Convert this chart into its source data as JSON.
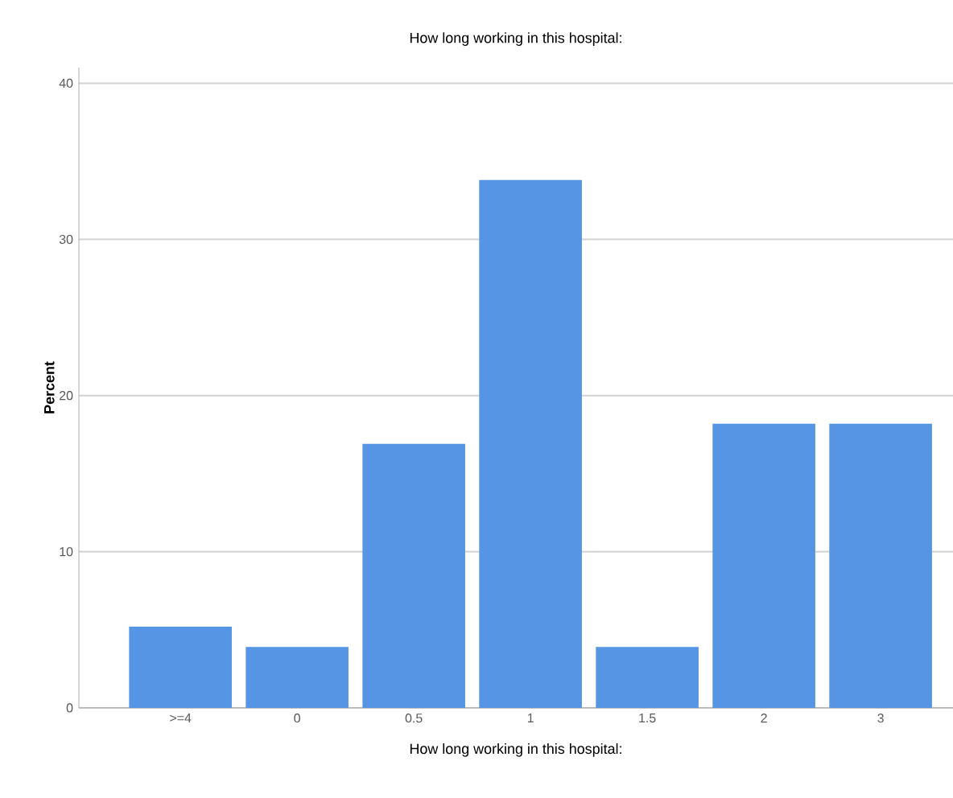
{
  "chart_data": {
    "type": "bar",
    "title": "How long working in this hospital:",
    "xlabel": "How long working in this hospital:",
    "ylabel": "Percent",
    "categories": [
      ">=4",
      "0",
      "0.5",
      "1",
      "1.5",
      "2",
      "3"
    ],
    "values": [
      5.2,
      3.9,
      16.9,
      33.8,
      3.9,
      18.2,
      18.2
    ],
    "color": "#5595e3",
    "ylim": [
      0,
      41
    ],
    "yticks": [
      0,
      10,
      20,
      30,
      40
    ],
    "grid": "y"
  }
}
